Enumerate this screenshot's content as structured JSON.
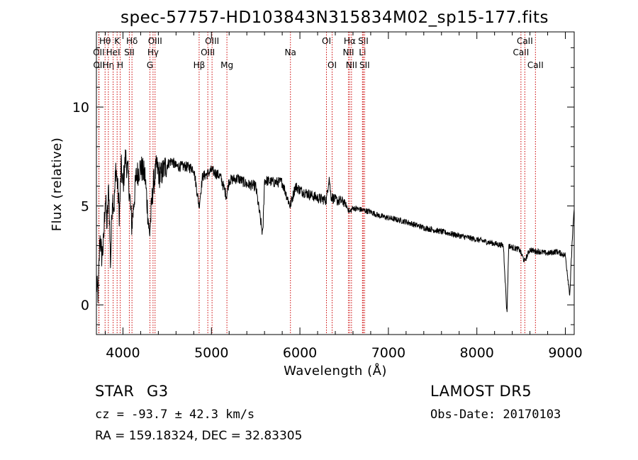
{
  "chart_data": {
    "type": "line",
    "title": "spec-57757-HD103843N315834M02_sp15-177.fits",
    "xlabel": "Wavelength (Å)",
    "ylabel": "Flux (relative)",
    "xlim": [
      3700,
      9100
    ],
    "ylim": [
      -1.5,
      13.8
    ],
    "x_ticks": [
      4000,
      5000,
      6000,
      7000,
      8000,
      9000
    ],
    "y_ticks": [
      0,
      5,
      10
    ],
    "grid": false,
    "line_color": "#000000",
    "marker_color": "#cc0000",
    "series": [
      {
        "x": [
          3700,
          3720,
          3740,
          3760,
          3780,
          3800,
          3820,
          3840,
          3860,
          3880,
          3900,
          3920,
          3940,
          3960,
          3980,
          4000,
          4030,
          4060,
          4100,
          4150,
          4200,
          4250,
          4300,
          4340,
          4380,
          4420,
          4480,
          4550,
          4600,
          4700,
          4800,
          4860,
          4900,
          4950,
          5000,
          5100,
          5170,
          5200,
          5300,
          5400,
          5500,
          5580,
          5600,
          5700,
          5800,
          5890,
          5950,
          6000,
          6100,
          6200,
          6300,
          6330,
          6350,
          6400,
          6500,
          6563,
          6600,
          6700,
          6800,
          6900,
          7000,
          7200,
          7400,
          7600,
          7800,
          8000,
          8200,
          8300,
          8340,
          8360,
          8400,
          8480,
          8540,
          8600,
          8660,
          8700,
          8800,
          8900,
          9000,
          9050,
          9080,
          9100
        ],
        "y": [
          1.0,
          0.5,
          3.5,
          2.5,
          3.0,
          5.5,
          4.0,
          6.0,
          2.0,
          5.5,
          5.0,
          7.0,
          6.0,
          4.5,
          7.0,
          6.0,
          7.5,
          6.5,
          4.0,
          6.5,
          7.0,
          6.5,
          3.5,
          6.0,
          7.0,
          6.5,
          7.0,
          7.3,
          7.0,
          7.0,
          6.9,
          5.0,
          6.5,
          6.6,
          6.8,
          6.5,
          5.5,
          6.3,
          6.4,
          6.1,
          6.0,
          3.5,
          6.3,
          6.2,
          6.2,
          5.0,
          6.0,
          5.8,
          5.6,
          5.4,
          5.3,
          6.5,
          5.5,
          5.3,
          5.2,
          4.7,
          4.9,
          4.8,
          4.7,
          4.5,
          4.4,
          4.2,
          3.9,
          3.7,
          3.5,
          3.3,
          3.1,
          3.0,
          -0.5,
          3.0,
          2.9,
          2.8,
          2.2,
          2.8,
          2.7,
          2.7,
          2.6,
          2.7,
          2.5,
          0.5,
          3.5,
          4.8
        ]
      }
    ],
    "lines": [
      {
        "wl": 3727,
        "label": "OII",
        "row": 2
      },
      {
        "wl": 3729,
        "label": "OII",
        "row": 3
      },
      {
        "wl": 3798,
        "label": "Hθ",
        "row": 1
      },
      {
        "wl": 3835,
        "label": "Hη",
        "row": 3
      },
      {
        "wl": 3889,
        "label": "HeI",
        "row": 2
      },
      {
        "wl": 3934,
        "label": "K",
        "row": 1
      },
      {
        "wl": 3969,
        "label": "H",
        "row": 3
      },
      {
        "wl": 4072,
        "label": "SII",
        "row": 2
      },
      {
        "wl": 4102,
        "label": "Hδ",
        "row": 1
      },
      {
        "wl": 4305,
        "label": "G",
        "row": 3
      },
      {
        "wl": 4340,
        "label": "Hγ",
        "row": 2
      },
      {
        "wl": 4363,
        "label": "OIII",
        "row": 1
      },
      {
        "wl": 4861,
        "label": "Hβ",
        "row": 3
      },
      {
        "wl": 4959,
        "label": "OIII",
        "row": 2
      },
      {
        "wl": 5007,
        "label": "OIII",
        "row": 1
      },
      {
        "wl": 5175,
        "label": "Mg",
        "row": 3
      },
      {
        "wl": 5893,
        "label": "Na",
        "row": 2
      },
      {
        "wl": 6300,
        "label": "OI",
        "row": 1
      },
      {
        "wl": 6364,
        "label": "OI",
        "row": 3
      },
      {
        "wl": 6548,
        "label": "NII",
        "row": 2
      },
      {
        "wl": 6563,
        "label": "Hα",
        "row": 1
      },
      {
        "wl": 6583,
        "label": "NII",
        "row": 3
      },
      {
        "wl": 6707,
        "label": "Li",
        "row": 2
      },
      {
        "wl": 6716,
        "label": "SII",
        "row": 1
      },
      {
        "wl": 6731,
        "label": "SII",
        "row": 3
      },
      {
        "wl": 8498,
        "label": "CaII",
        "row": 2
      },
      {
        "wl": 8542,
        "label": "CaII",
        "row": 1
      },
      {
        "wl": 8662,
        "label": "CaII",
        "row": 3
      }
    ]
  },
  "info": {
    "class": "STAR",
    "subclass": "G3",
    "cz": "cz = -93.7 ± 42.3 km/s",
    "radec": "RA = 159.18324, DEC =  32.83305",
    "survey": "LAMOST DR5",
    "obs_date": "Obs-Date: 20170103"
  }
}
